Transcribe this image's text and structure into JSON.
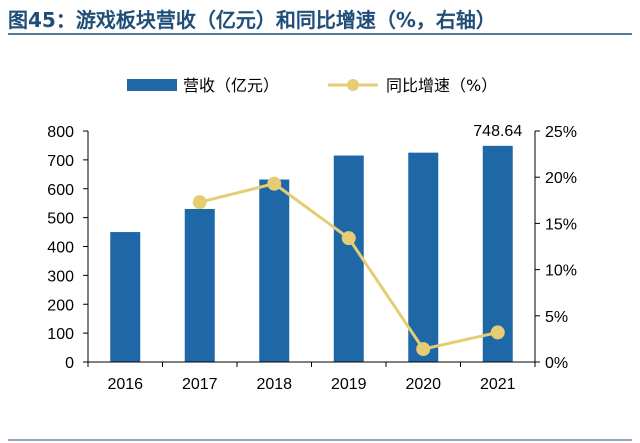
{
  "title": "图45：游戏板块营收（亿元）和同比增速（%，右轴）",
  "colors": {
    "bar": "#1f68a8",
    "line": "#e6cd74",
    "title": "#1f4e79",
    "rule": "#1f4e79"
  },
  "chart_data": {
    "type": "bar",
    "categories": [
      "2016",
      "2017",
      "2018",
      "2019",
      "2020",
      "2021"
    ],
    "series": [
      {
        "name": "营收（亿元）",
        "type": "bar",
        "axis": "left",
        "values": [
          450,
          530,
          632,
          715,
          725,
          748.64
        ]
      },
      {
        "name": "同比增速（%）",
        "type": "line",
        "axis": "right",
        "values": [
          null,
          17.3,
          19.3,
          13.4,
          1.4,
          3.2
        ]
      }
    ],
    "data_labels": [
      {
        "category": "2021",
        "series": "营收（亿元）",
        "text": "748.64"
      }
    ],
    "ylim": [
      0,
      800
    ],
    "yticks": [
      "0",
      "100",
      "200",
      "300",
      "400",
      "500",
      "600",
      "700",
      "800"
    ],
    "y2lim": [
      0,
      25
    ],
    "y2ticks": [
      "0%",
      "5%",
      "10%",
      "15%",
      "20%",
      "25%"
    ],
    "legend": "top-center",
    "grid": false
  }
}
